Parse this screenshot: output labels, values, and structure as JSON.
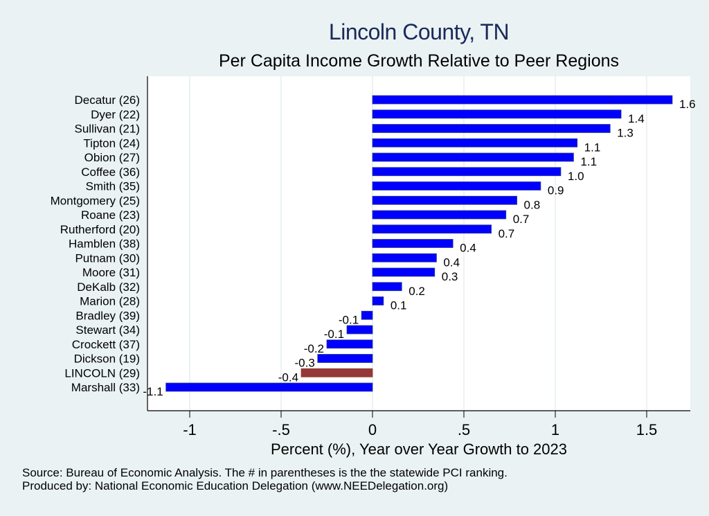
{
  "header": {
    "title": "Lincoln County, TN",
    "subtitle": "Per Capita Income Growth Relative to Peer Regions"
  },
  "footer": {
    "source_note": "Source: Bureau of Economic Analysis. The # in parentheses is the the statewide PCI ranking.",
    "produced_by": "Produced by: National Economic Education Delegation (www.NEEDelegation.org)"
  },
  "colors": {
    "bar_default": "#0000ff",
    "bar_highlight": "#943838",
    "title": "#1a2a5a",
    "background": "#eaf2f3",
    "plot_background": "#ffffff"
  },
  "chart_data": {
    "type": "bar",
    "orientation": "horizontal",
    "title": "Lincoln County, TN",
    "subtitle": "Per Capita Income Growth Relative to Peer Regions",
    "xlabel": "Percent (%), Year over Year Growth to 2023",
    "ylabel": "",
    "xlim": [
      -1.25,
      1.74
    ],
    "xticks": [
      -1,
      -0.5,
      0,
      0.5,
      1,
      1.5
    ],
    "xtick_labels": [
      "-1",
      "-.5",
      "0",
      ".5",
      "1",
      "1.5"
    ],
    "grid": true,
    "highlight_category": "LINCOLN (29)",
    "categories": [
      "Decatur (26)",
      "Dyer (22)",
      "Sullivan (21)",
      "Tipton (24)",
      "Obion (27)",
      "Coffee (36)",
      "Smith (35)",
      "Montgomery (25)",
      "Roane (23)",
      "Rutherford (20)",
      "Hamblen (38)",
      "Putnam (30)",
      "Moore (31)",
      "DeKalb (32)",
      "Marion (28)",
      "Bradley (39)",
      "Stewart (34)",
      "Crockett (37)",
      "Dickson (19)",
      "LINCOLN (29)",
      "Marshall (33)"
    ],
    "values": [
      1.64,
      1.36,
      1.3,
      1.12,
      1.1,
      1.03,
      0.92,
      0.79,
      0.73,
      0.65,
      0.44,
      0.35,
      0.34,
      0.16,
      0.06,
      -0.06,
      -0.14,
      -0.25,
      -0.3,
      -0.39,
      -1.13
    ],
    "data_labels": [
      "1.6",
      "1.4",
      "1.3",
      "1.1",
      "1.1",
      "1.0",
      "0.9",
      "0.8",
      "0.7",
      "0.7",
      "0.4",
      "0.4",
      "0.3",
      "0.2",
      "0.1",
      "-0.1",
      "-0.1",
      "-0.2",
      "-0.3",
      "-0.4",
      "-1.1"
    ]
  }
}
